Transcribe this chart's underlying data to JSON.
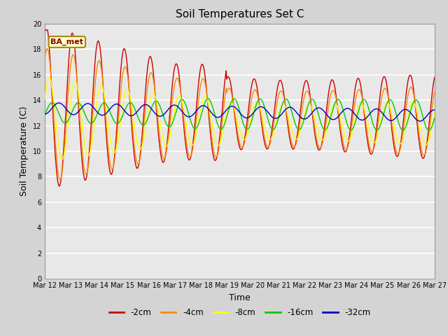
{
  "title": "Soil Temperatures Set C",
  "xlabel": "Time",
  "ylabel": "Soil Temperature (C)",
  "annotation": "BA_met",
  "ylim": [
    0,
    20
  ],
  "yticks": [
    0,
    2,
    4,
    6,
    8,
    10,
    12,
    14,
    16,
    18,
    20
  ],
  "x_labels": [
    "Mar 12",
    "Mar 13",
    "Mar 14",
    "Mar 15",
    "Mar 16",
    "Mar 17",
    "Mar 18",
    "Mar 19",
    "Mar 20",
    "Mar 21",
    "Mar 22",
    "Mar 23",
    "Mar 24",
    "Mar 25",
    "Mar 26",
    "Mar 27"
  ],
  "legend_labels": [
    "-2cm",
    "-4cm",
    "-8cm",
    "-16cm",
    "-32cm"
  ],
  "line_colors": [
    "#cc0000",
    "#ff8800",
    "#ffff00",
    "#00cc00",
    "#0000cc"
  ],
  "fig_facecolor": "#d4d4d4",
  "ax_facecolor": "#e8e8e8",
  "n_points": 721
}
